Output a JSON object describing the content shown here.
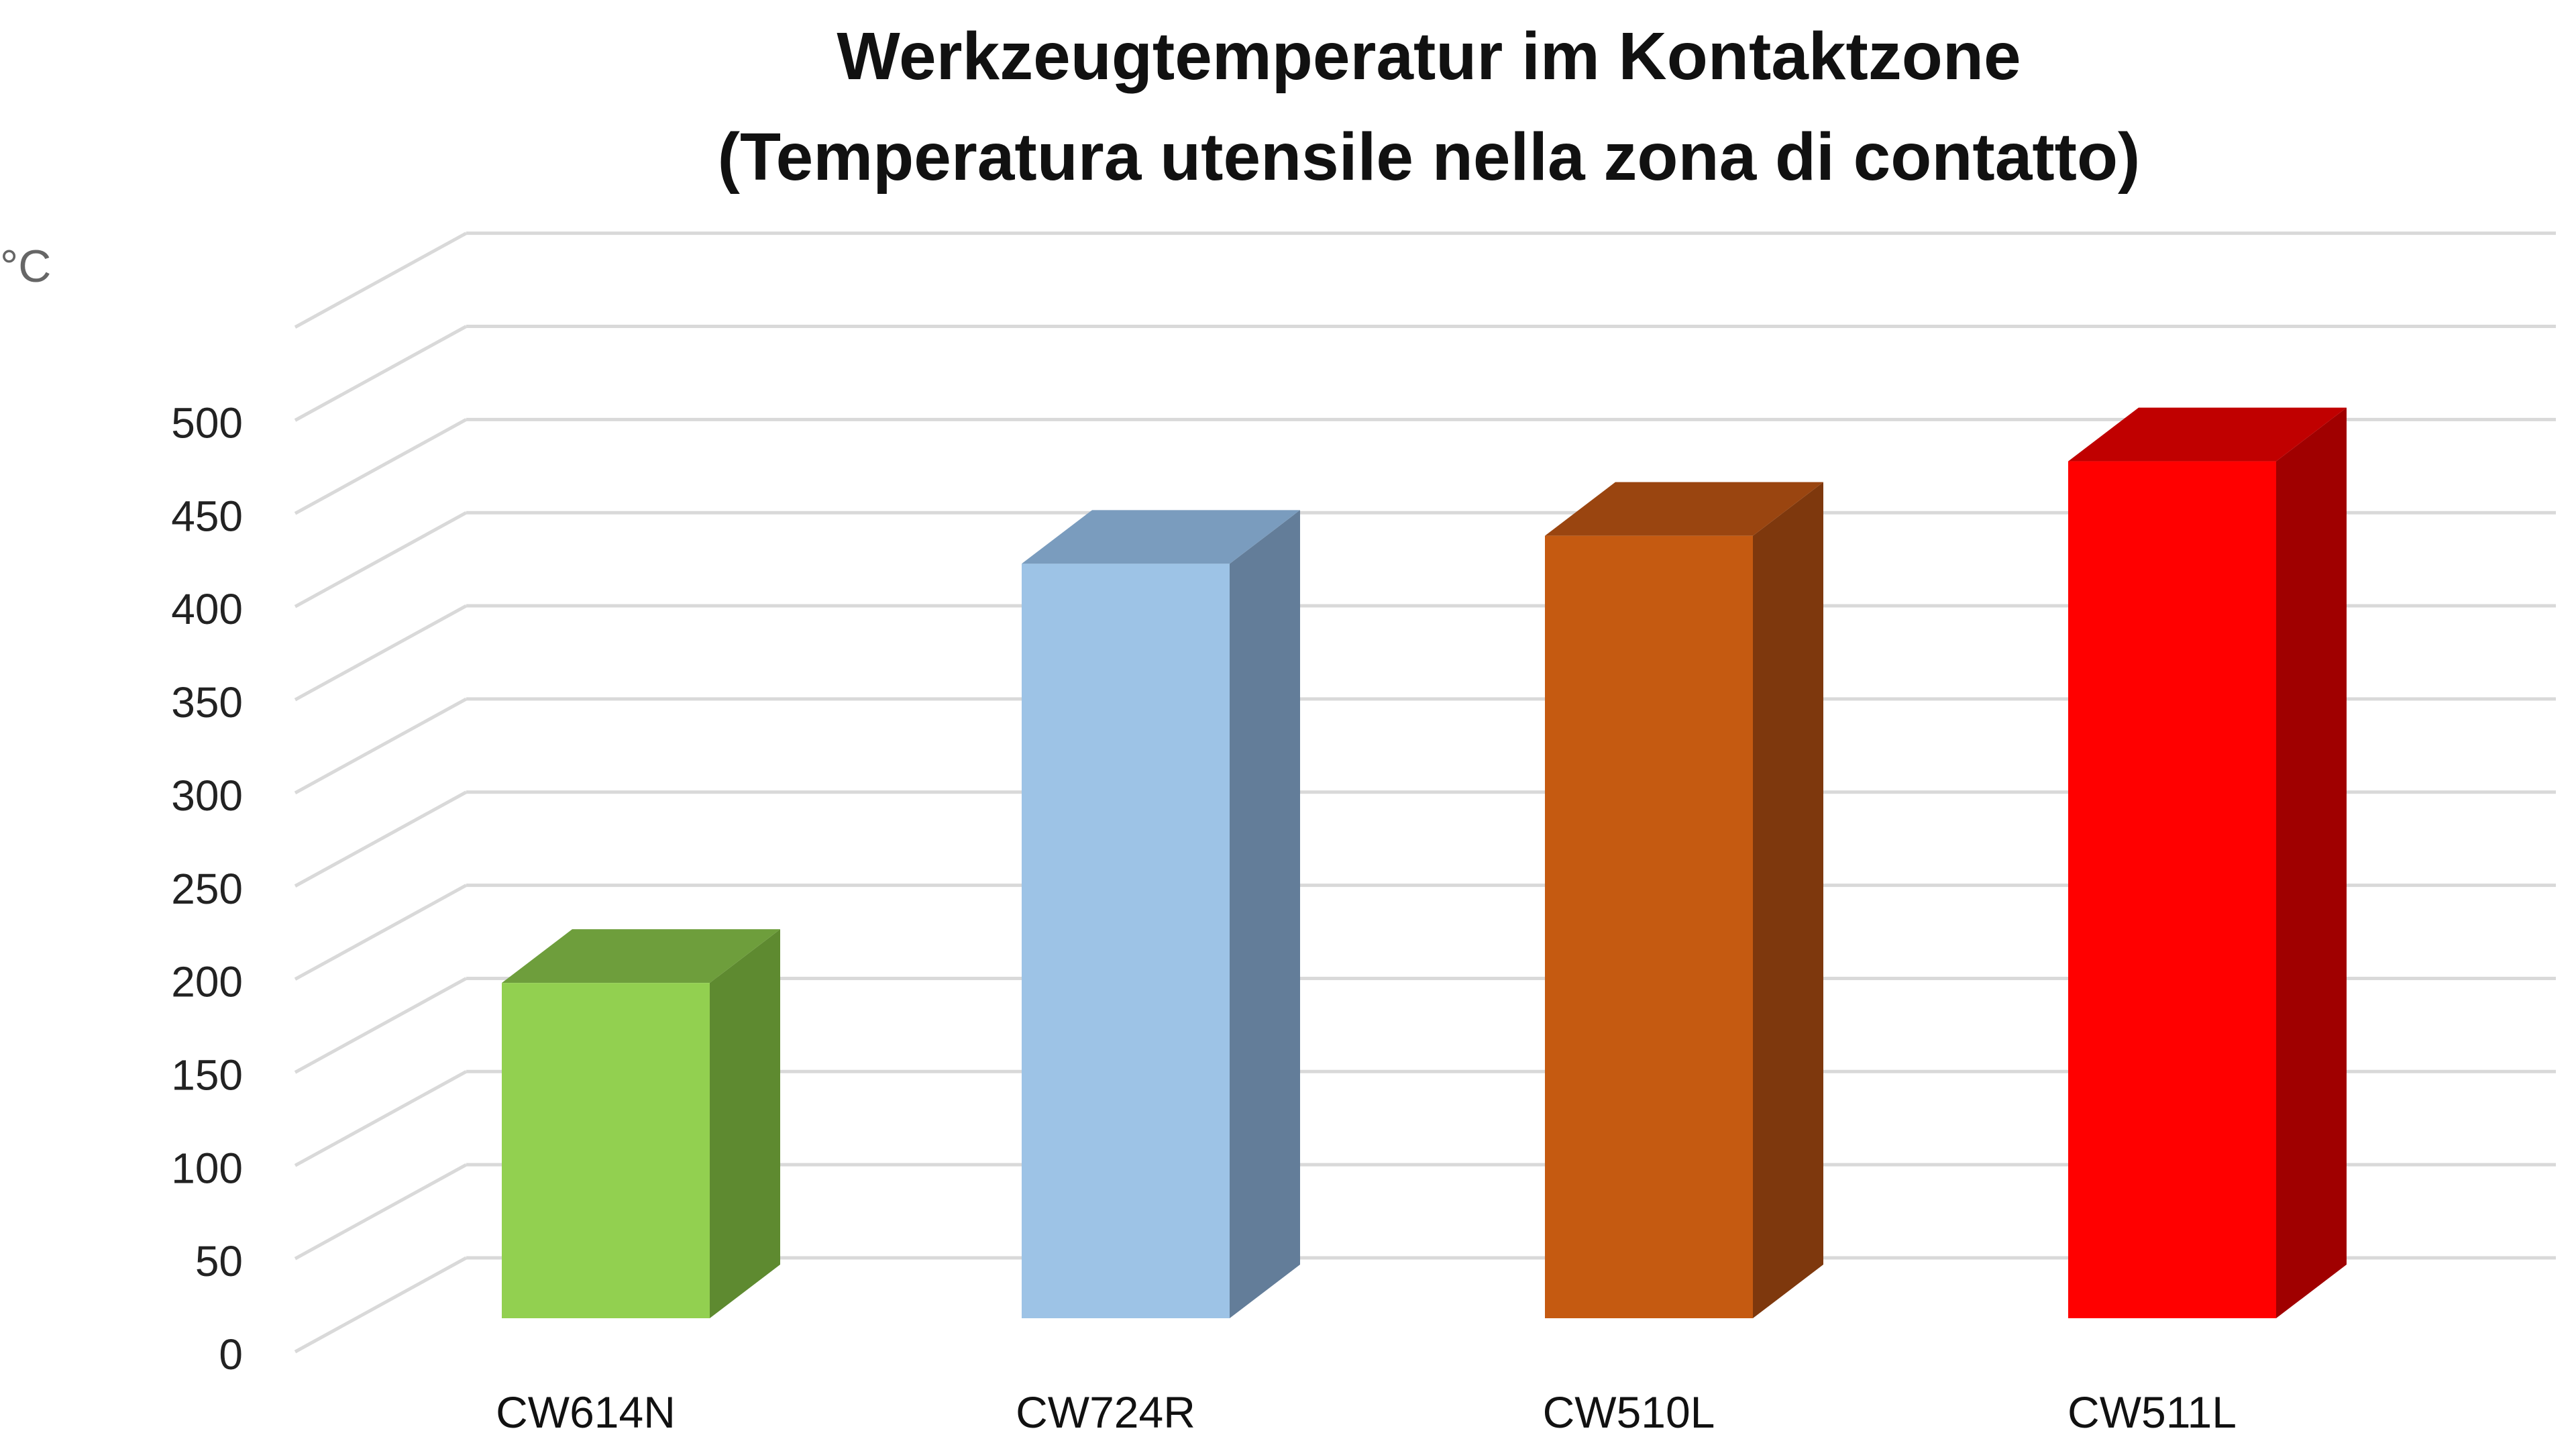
{
  "chart_data": {
    "type": "bar",
    "title": "Werkzeugtemperatur im Kontaktzone",
    "subtitle": "(Temperatura utensile nella zona di contatto)",
    "unit": "°C",
    "ylim": [
      0,
      550
    ],
    "y_ticks": [
      0,
      50,
      100,
      150,
      200,
      250,
      300,
      350,
      400,
      450,
      500
    ],
    "grid": true,
    "style": "3d-columns",
    "categories": [
      "CW614N",
      "CW724R",
      "CW510L",
      "CW511L"
    ],
    "values": [
      180,
      405,
      420,
      460
    ],
    "colors": [
      {
        "front": "#92D050",
        "top": "#6E9E3C",
        "side": "#5E8A30"
      },
      {
        "front": "#9DC3E6",
        "top": "#7A9CBE",
        "side": "#637D99"
      },
      {
        "front": "#C55A11",
        "top": "#9A4510",
        "side": "#7E380D"
      },
      {
        "front": "#FF0000",
        "top": "#C00000",
        "side": "#A00000"
      }
    ],
    "gridline_color": "#D9D9D9"
  }
}
